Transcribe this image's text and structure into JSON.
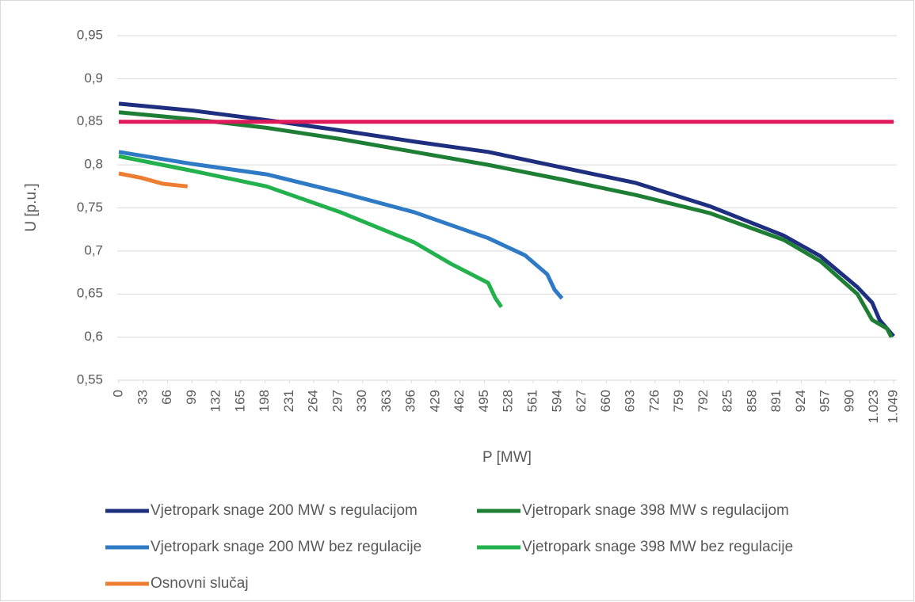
{
  "chart_data": {
    "type": "line",
    "xlabel": "P [MW]",
    "ylabel": "U [p.u.]",
    "xlim": [
      0,
      1049
    ],
    "ylim": [
      0.55,
      0.95
    ],
    "xticks": [
      0,
      33,
      66,
      99,
      132,
      165,
      198,
      231,
      264,
      297,
      330,
      363,
      396,
      429,
      462,
      495,
      528,
      561,
      594,
      627,
      660,
      693,
      726,
      759,
      792,
      825,
      858,
      891,
      924,
      957,
      990,
      {
        "value": 1023,
        "label": "1.023"
      },
      {
        "value": 1049,
        "label": "1.049"
      }
    ],
    "yticks": [
      {
        "value": 0.55,
        "label": "0,55"
      },
      {
        "value": 0.6,
        "label": "0,6"
      },
      {
        "value": 0.65,
        "label": "0,65"
      },
      {
        "value": 0.7,
        "label": "0,7"
      },
      {
        "value": 0.75,
        "label": "0,75"
      },
      {
        "value": 0.8,
        "label": "0,8"
      },
      {
        "value": 0.85,
        "label": "0,85"
      },
      {
        "value": 0.9,
        "label": "0,9"
      },
      {
        "value": 0.95,
        "label": "0,95"
      }
    ],
    "grid": true,
    "legend": "bottom",
    "series": [
      {
        "name": "Vjetropark snage 200 MW s regulacijom",
        "color": "#1f2f7f",
        "x": [
          0,
          100,
          200,
          300,
          400,
          500,
          600,
          700,
          800,
          850,
          900,
          950,
          1000,
          1020,
          1030,
          1049
        ],
        "values": [
          0.871,
          0.863,
          0.852,
          0.84,
          0.827,
          0.815,
          0.797,
          0.779,
          0.752,
          0.735,
          0.718,
          0.694,
          0.658,
          0.64,
          0.62,
          0.601
        ]
      },
      {
        "name": "Vjetropark snage 398 MW s regulacijom",
        "color": "#1e7f34",
        "x": [
          0,
          100,
          200,
          300,
          400,
          500,
          600,
          700,
          800,
          900,
          950,
          1000,
          1020,
          1040,
          1046
        ],
        "values": [
          0.861,
          0.853,
          0.843,
          0.83,
          0.815,
          0.8,
          0.783,
          0.765,
          0.744,
          0.713,
          0.688,
          0.65,
          0.62,
          0.61,
          0.6
        ]
      },
      {
        "name": "Vjetropark snage 200 MW bez regulacije",
        "color": "#2f7ac4",
        "x": [
          0,
          100,
          200,
          300,
          400,
          500,
          550,
          580,
          590,
          600
        ],
        "values": [
          0.815,
          0.801,
          0.789,
          0.768,
          0.745,
          0.715,
          0.695,
          0.673,
          0.655,
          0.645
        ]
      },
      {
        "name": "Vjetropark snage 398 MW bez regulacije",
        "color": "#22b14c",
        "x": [
          0,
          100,
          200,
          300,
          400,
          450,
          500,
          510,
          518
        ],
        "values": [
          0.81,
          0.793,
          0.775,
          0.745,
          0.71,
          0.685,
          0.663,
          0.645,
          0.635
        ]
      },
      {
        "name": "Osnovni slučaj",
        "color": "#ed7d31",
        "x": [
          0,
          30,
          60,
          93
        ],
        "values": [
          0.79,
          0.785,
          0.778,
          0.775
        ]
      },
      {
        "color": "#e0195a",
        "x": [
          0,
          1049
        ],
        "values": [
          0.85,
          0.85
        ]
      }
    ]
  }
}
